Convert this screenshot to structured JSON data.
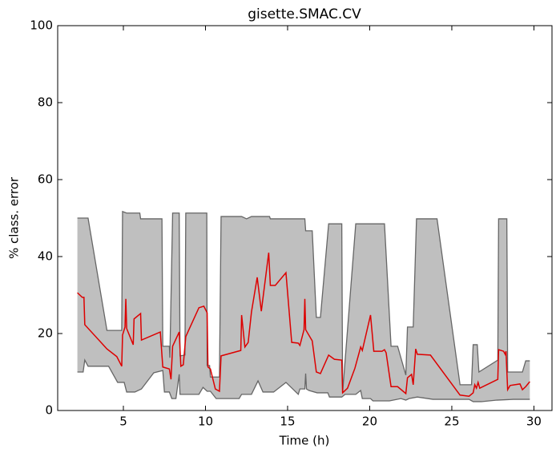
{
  "chart_data": {
    "type": "line",
    "title": "gisette.SMAC.CV",
    "xlabel": "Time (h)",
    "ylabel": "% class. error",
    "xlim": [
      1.0,
      31.1
    ],
    "ylim": [
      0,
      100
    ],
    "xticks": [
      5,
      10,
      15,
      20,
      25,
      30
    ],
    "yticks": [
      0,
      20,
      40,
      60,
      80,
      100
    ],
    "band_color": "#bfbfbf",
    "series": [
      {
        "color": "#666666",
        "x": [
          2.2,
          2.85,
          4.0,
          4.9,
          4.95,
          5.2,
          6.0,
          6.05,
          7.35,
          7.4,
          7.8,
          7.83,
          8.0,
          8.4,
          8.45,
          8.75,
          8.8,
          10.08,
          10.1,
          10.25,
          10.3,
          10.85,
          10.95,
          12.2,
          12.5,
          12.8,
          13.9,
          13.95,
          16.05,
          16.1,
          16.5,
          16.75,
          17.0,
          17.5,
          18.3,
          18.35,
          19.15,
          20.9,
          21.3,
          21.7,
          22.2,
          22.3,
          22.65,
          22.85,
          24.1,
          25.5,
          26.2,
          26.3,
          26.55,
          26.65,
          27.8,
          27.85,
          28.35,
          28.4,
          29.3,
          29.5,
          29.75
        ],
        "values": [
          50,
          50,
          20.8,
          20.8,
          51.7,
          51.3,
          51.3,
          49.8,
          49.8,
          16.7,
          16.7,
          13.7,
          51.3,
          51.3,
          14.2,
          14.4,
          51.3,
          51.3,
          11.7,
          11.7,
          8.7,
          8.7,
          50.4,
          50.4,
          49.8,
          50.4,
          50.4,
          49.8,
          49.8,
          46.7,
          46.7,
          24.2,
          24.2,
          48.5,
          48.5,
          4.6,
          48.5,
          48.5,
          16.7,
          16.7,
          9.2,
          21.7,
          21.7,
          49.8,
          49.8,
          6.7,
          6.7,
          17.1,
          17.1,
          10.0,
          13.1,
          49.8,
          49.8,
          10.0,
          10.0,
          12.9,
          12.9
        ]
      },
      {
        "color": "#666666",
        "x": [
          2.2,
          2.55,
          2.65,
          2.85,
          4.1,
          4.65,
          5.05,
          5.2,
          5.7,
          6.1,
          6.85,
          7.4,
          7.5,
          7.8,
          7.95,
          8.2,
          8.4,
          8.45,
          9.6,
          9.85,
          10.1,
          10.3,
          10.65,
          12.05,
          12.2,
          12.8,
          13.2,
          13.5,
          14.15,
          14.9,
          15.65,
          15.75,
          16.05,
          16.1,
          16.15,
          16.3,
          16.8,
          17.45,
          17.55,
          18.3,
          18.5,
          19.15,
          19.45,
          19.55,
          20.05,
          20.2,
          21.2,
          21.9,
          22.2,
          22.4,
          22.9,
          23.85,
          26.05,
          26.3,
          26.8,
          27.75,
          28.75,
          29.75
        ],
        "values": [
          10.0,
          10.0,
          13.1,
          11.5,
          11.5,
          7.3,
          7.3,
          4.8,
          4.8,
          5.6,
          9.8,
          10.4,
          4.8,
          4.8,
          3.1,
          3.1,
          9.4,
          4.2,
          4.2,
          6.0,
          5.0,
          5.0,
          3.1,
          3.1,
          4.2,
          4.2,
          7.7,
          4.8,
          4.8,
          7.3,
          4.2,
          5.6,
          5.6,
          9.6,
          5.6,
          5.2,
          4.6,
          4.6,
          3.5,
          3.5,
          4.2,
          4.2,
          5.2,
          3.1,
          3.1,
          2.5,
          2.5,
          3.1,
          2.7,
          3.1,
          3.5,
          2.9,
          2.9,
          2.3,
          2.3,
          2.7,
          2.9,
          2.9
        ]
      },
      {
        "color": "#dd0000",
        "x": [
          2.2,
          2.5,
          2.6,
          2.65,
          4.0,
          4.6,
          4.9,
          4.95,
          5.1,
          5.15,
          5.2,
          5.6,
          5.65,
          6.05,
          6.1,
          7.25,
          7.4,
          7.8,
          7.9,
          8.0,
          8.4,
          8.5,
          8.65,
          8.8,
          9.6,
          9.9,
          10.1,
          10.15,
          10.3,
          10.6,
          10.85,
          10.95,
          12.15,
          12.2,
          12.4,
          12.6,
          12.8,
          13.15,
          13.4,
          13.85,
          13.95,
          14.25,
          14.9,
          15.25,
          15.65,
          15.75,
          16.0,
          16.05,
          16.1,
          16.5,
          16.75,
          17.0,
          17.5,
          17.85,
          18.3,
          18.35,
          18.65,
          19.1,
          19.45,
          19.55,
          20.05,
          20.25,
          20.75,
          20.9,
          21.0,
          21.3,
          21.7,
          22.2,
          22.3,
          22.55,
          22.65,
          22.8,
          22.9,
          23.7,
          25.5,
          26.05,
          26.3,
          26.4,
          26.5,
          26.6,
          26.7,
          27.8,
          27.85,
          28.15,
          28.25,
          28.3,
          28.4,
          28.55,
          29.15,
          29.3,
          29.5,
          29.75
        ],
        "values": [
          30.6,
          29.4,
          29.4,
          22.3,
          16.0,
          14.0,
          11.5,
          19.6,
          21.7,
          29.0,
          21.3,
          17.1,
          23.8,
          25.2,
          18.3,
          20.4,
          11.3,
          10.8,
          8.1,
          16.7,
          20.4,
          11.5,
          11.9,
          19.2,
          26.7,
          27.1,
          25.4,
          11.3,
          10.8,
          5.6,
          5.0,
          14.2,
          15.6,
          24.8,
          16.5,
          17.7,
          25.6,
          34.6,
          25.8,
          41.0,
          32.5,
          32.5,
          35.8,
          17.7,
          17.5,
          16.9,
          21.0,
          29.0,
          21.0,
          18.1,
          10.0,
          9.6,
          14.4,
          13.3,
          13.1,
          4.6,
          5.8,
          11.0,
          16.5,
          15.6,
          24.8,
          15.4,
          15.4,
          15.8,
          15.0,
          6.2,
          6.2,
          4.4,
          8.5,
          9.4,
          6.7,
          16.0,
          14.6,
          14.4,
          4.0,
          3.7,
          4.6,
          6.7,
          5.8,
          7.3,
          5.8,
          8.1,
          15.8,
          15.4,
          14.6,
          15.4,
          5.4,
          6.5,
          6.9,
          5.4,
          6.2,
          7.5
        ]
      }
    ]
  }
}
